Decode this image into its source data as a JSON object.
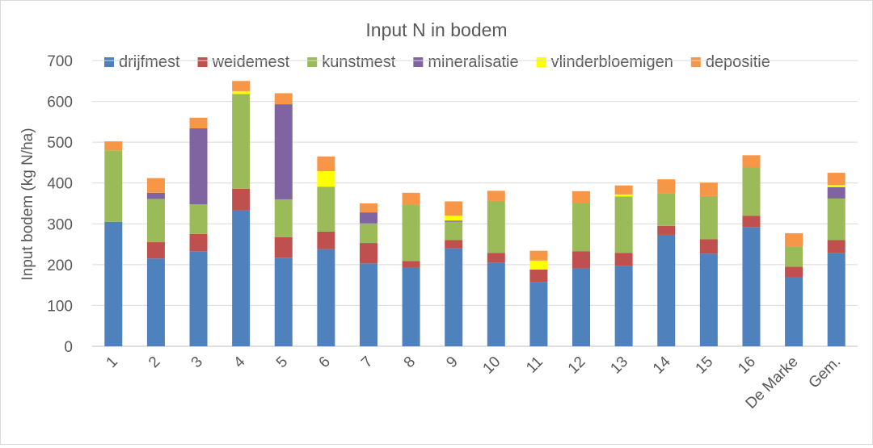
{
  "chart_data": {
    "type": "bar",
    "stacked": true,
    "title": "Input N in bodem",
    "xlabel": "",
    "ylabel": "Input bodem (kg N/ha)",
    "ylim": [
      0,
      700
    ],
    "yticks": [
      0,
      100,
      200,
      300,
      400,
      500,
      600,
      700
    ],
    "grid": true,
    "legend_position": "top",
    "categories": [
      "1",
      "2",
      "3",
      "4",
      "5",
      "6",
      "7",
      "8",
      "9",
      "10",
      "11",
      "12",
      "13",
      "14",
      "15",
      "16",
      "De Marke",
      "Gem."
    ],
    "series": [
      {
        "name": "drijfmest",
        "color": "#4f81bd",
        "values": [
          305,
          215,
          233,
          333,
          217,
          238,
          203,
          192,
          240,
          205,
          158,
          191,
          197,
          273,
          227,
          292,
          170,
          228
        ]
      },
      {
        "name": "weidemest",
        "color": "#c0504d",
        "values": [
          0,
          40,
          42,
          53,
          50,
          43,
          50,
          17,
          20,
          24,
          30,
          42,
          32,
          22,
          35,
          28,
          25,
          32
        ]
      },
      {
        "name": "kunstmest",
        "color": "#9bbb59",
        "values": [
          175,
          106,
          73,
          232,
          93,
          110,
          48,
          137,
          45,
          127,
          0,
          117,
          138,
          80,
          106,
          118,
          50,
          102
        ]
      },
      {
        "name": "mineralisatie",
        "color": "#8064a2",
        "values": [
          0,
          15,
          186,
          0,
          233,
          0,
          27,
          0,
          3,
          0,
          0,
          0,
          0,
          0,
          0,
          0,
          0,
          28
        ]
      },
      {
        "name": "vlinderbloemigen",
        "color": "#ffff00",
        "values": [
          0,
          0,
          0,
          7,
          0,
          38,
          0,
          0,
          12,
          0,
          22,
          0,
          5,
          0,
          0,
          0,
          0,
          5
        ]
      },
      {
        "name": "depositie",
        "color": "#f79646",
        "values": [
          22,
          36,
          26,
          25,
          27,
          36,
          22,
          30,
          35,
          25,
          24,
          30,
          22,
          34,
          33,
          30,
          32,
          30
        ]
      }
    ]
  }
}
